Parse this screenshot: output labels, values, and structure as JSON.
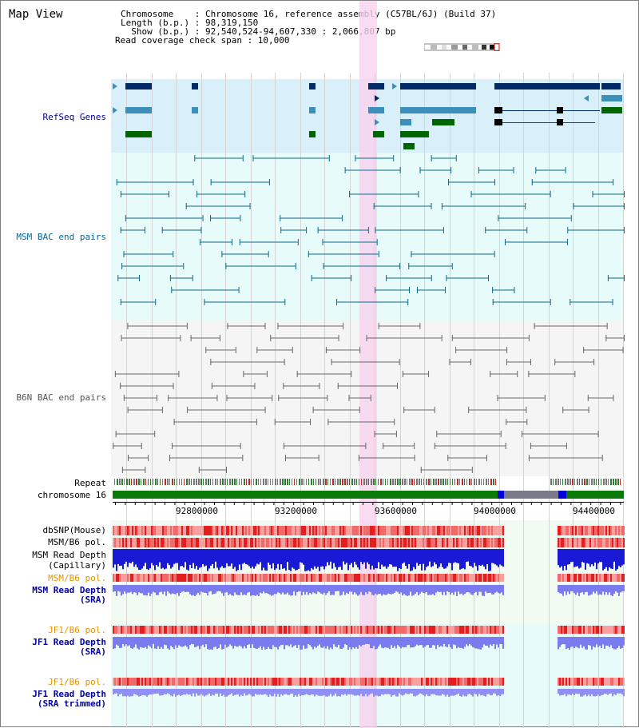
{
  "title": "Map View",
  "info": {
    "line1": "Chromosome    : Chromosome 16, reference assembly (C57BL/6J) (Build 37)",
    "line2": "Length (b.p.) : 98,319,150",
    "line3": "  Show (b.p.) : 92,540,524-94,607,330 : 2,066,807 bp",
    "line4": "Read coverage check span : 10,000"
  },
  "tracks": {
    "refseq": "RefSeq Genes",
    "msm_bac": "MSM BAC end pairs",
    "b6n_bac": "B6N BAC end pairs",
    "repeat": "Repeat",
    "chromosome": "chromosome 16",
    "dbsnp": "dbSNP(Mouse)",
    "msm_pol": "MSM/B6 pol.",
    "msm_depth_cap1": "MSM Read Depth",
    "msm_depth_cap2": "(Capillary)",
    "msm_pol2": "MSM/B6 pol.",
    "msm_depth_sra1": "MSM Read Depth",
    "msm_depth_sra2": "(SRA)",
    "jf1_pol": "JF1/B6 pol.",
    "jf1_depth1": "JF1 Read Depth",
    "jf1_depth2": "(SRA)",
    "jf1_pol2": "JF1/B6 pol.",
    "jf1_trim1": "JF1 Read Depth",
    "jf1_trim2": "(SRA trimmed)"
  },
  "axis": {
    "ticks": [
      "92800000",
      "93200000",
      "93600000",
      "94000000",
      "94400000"
    ]
  },
  "colors": {
    "refseq_label": "#00008b",
    "msm_label": "#00689e",
    "b6n_label": "#555555",
    "orange_label": "#e69500",
    "blue_label": "#0000a0",
    "highlight": "#f7d2ef"
  }
}
